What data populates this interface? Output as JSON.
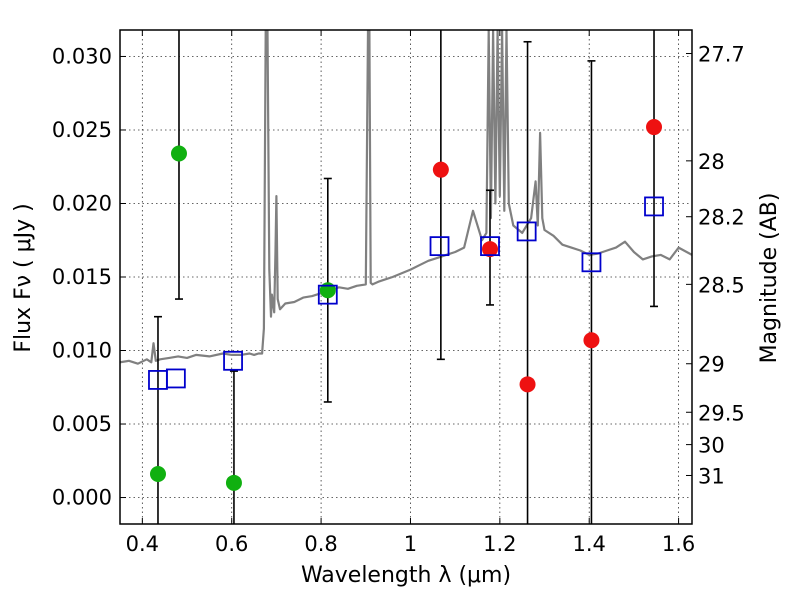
{
  "chart_data": {
    "type": "scatter",
    "xlabel": "Wavelength  λ (μm)",
    "ylabel": "Flux  Fν  ( μJy )",
    "ylabel2": "Magnitude (AB)",
    "xlim": [
      0.35,
      1.63
    ],
    "ylim": [
      -0.0018,
      0.0318
    ],
    "grid": true,
    "x_ticks": [
      0.4,
      0.6,
      0.8,
      1.0,
      1.2,
      1.4,
      1.6
    ],
    "x_tick_labels": [
      "0.4",
      "0.6",
      "0.8",
      "1",
      "1.2",
      "1.4",
      "1.6"
    ],
    "y_ticks": [
      0.0,
      0.005,
      0.01,
      0.015,
      0.02,
      0.025,
      0.03
    ],
    "y_tick_labels": [
      "0.000",
      "0.005",
      "0.010",
      "0.015",
      "0.020",
      "0.025",
      "0.030"
    ],
    "mag_ticks": [
      {
        "label": "27.7",
        "flux": 0.0302
      },
      {
        "label": "28",
        "flux": 0.0229
      },
      {
        "label": "28.2",
        "flux": 0.0191
      },
      {
        "label": "28.5",
        "flux": 0.0145
      },
      {
        "label": "29",
        "flux": 0.0091
      },
      {
        "label": "29.5",
        "flux": 0.0058
      },
      {
        "label": "30",
        "flux": 0.0036
      },
      {
        "label": "31",
        "flux": 0.0015
      }
    ],
    "colors": {
      "spectrum": "#808080",
      "green": "#10b010",
      "red": "#ee1111",
      "model": "#0000cc",
      "errorbar": "#000000"
    },
    "series": [
      {
        "name": "spectrum",
        "kind": "line",
        "color": "#808080",
        "x": [
          0.35,
          0.37,
          0.39,
          0.41,
          0.42,
          0.425,
          0.43,
          0.44,
          0.46,
          0.48,
          0.5,
          0.52,
          0.55,
          0.58,
          0.6,
          0.62,
          0.64,
          0.65,
          0.66,
          0.668,
          0.672,
          0.676,
          0.68,
          0.684,
          0.688,
          0.69,
          0.695,
          0.698,
          0.7,
          0.703,
          0.708,
          0.72,
          0.74,
          0.76,
          0.78,
          0.8,
          0.82,
          0.84,
          0.86,
          0.88,
          0.9,
          0.905,
          0.908,
          0.911,
          0.915,
          0.93,
          0.96,
          1.0,
          1.02,
          1.04,
          1.06,
          1.08,
          1.1,
          1.12,
          1.14,
          1.16,
          1.17,
          1.175,
          1.18,
          1.185,
          1.19,
          1.195,
          1.2,
          1.205,
          1.21,
          1.215,
          1.22,
          1.23,
          1.25,
          1.27,
          1.28,
          1.285,
          1.29,
          1.295,
          1.3,
          1.32,
          1.34,
          1.36,
          1.38,
          1.4,
          1.42,
          1.44,
          1.46,
          1.48,
          1.5,
          1.52,
          1.54,
          1.56,
          1.58,
          1.6,
          1.63
        ],
        "y": [
          0.0092,
          0.0093,
          0.0091,
          0.0094,
          0.0092,
          0.0105,
          0.0093,
          0.0094,
          0.0095,
          0.0096,
          0.0095,
          0.0097,
          0.0096,
          0.0098,
          0.0097,
          0.0097,
          0.0098,
          0.0097,
          0.0098,
          0.0098,
          0.0115,
          0.0318,
          0.0318,
          0.0155,
          0.0123,
          0.0138,
          0.0126,
          0.0168,
          0.0205,
          0.0135,
          0.0128,
          0.0132,
          0.0133,
          0.0136,
          0.0137,
          0.0139,
          0.0141,
          0.0143,
          0.0142,
          0.0144,
          0.0145,
          0.0318,
          0.0318,
          0.0146,
          0.0145,
          0.0147,
          0.015,
          0.0155,
          0.0158,
          0.0161,
          0.0163,
          0.0165,
          0.0167,
          0.017,
          0.0195,
          0.0175,
          0.018,
          0.0318,
          0.019,
          0.0318,
          0.02,
          0.0318,
          0.0205,
          0.0318,
          0.0195,
          0.0318,
          0.02,
          0.0185,
          0.018,
          0.019,
          0.0215,
          0.0185,
          0.0248,
          0.019,
          0.0182,
          0.0178,
          0.0172,
          0.017,
          0.0168,
          0.0165,
          0.0166,
          0.0168,
          0.017,
          0.0174,
          0.0167,
          0.0162,
          0.0164,
          0.0165,
          0.0162,
          0.017,
          0.0165
        ]
      },
      {
        "name": "green points",
        "kind": "points",
        "color": "#10b010",
        "x": [
          0.435,
          0.482,
          0.605,
          0.815
        ],
        "y": [
          0.0016,
          0.0234,
          0.001,
          0.0141
        ]
      },
      {
        "name": "red points",
        "kind": "points",
        "color": "#ee1111",
        "x": [
          1.068,
          1.178,
          1.262,
          1.405,
          1.545
        ],
        "y": [
          0.0223,
          0.0169,
          0.0077,
          0.0107,
          0.0252
        ]
      },
      {
        "name": "model squares",
        "kind": "squares",
        "color": "#0000cc",
        "x": [
          0.435,
          0.475,
          0.603,
          0.815,
          1.065,
          1.178,
          1.26,
          1.405,
          1.545
        ],
        "y": [
          0.008,
          0.0081,
          0.0093,
          0.0138,
          0.0171,
          0.0171,
          0.0181,
          0.016,
          0.0198
        ]
      },
      {
        "name": "error bars",
        "kind": "errorbars",
        "color": "#000000",
        "x": [
          0.435,
          0.482,
          0.605,
          0.815,
          1.068,
          1.178,
          1.262,
          1.405,
          1.545
        ],
        "low": [
          -0.0018,
          0.0135,
          -0.0018,
          0.0065,
          0.0094,
          0.0131,
          -0.0018,
          -0.0018,
          0.013
        ],
        "high": [
          0.0123,
          0.0318,
          0.0086,
          0.0217,
          0.0318,
          0.0209,
          0.031,
          0.0297,
          0.0318
        ]
      }
    ]
  }
}
